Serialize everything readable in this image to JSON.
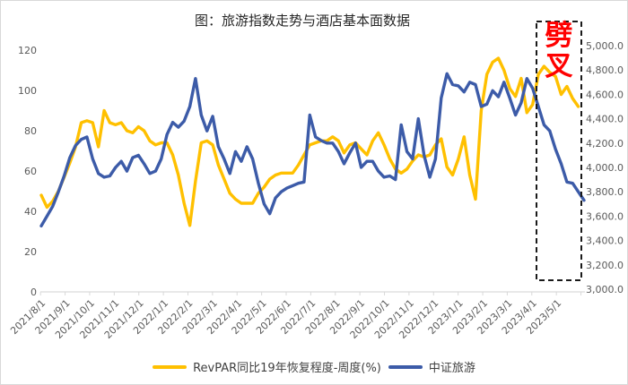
{
  "frame": {
    "title": "图：旅游指数走势与酒店基本面数据"
  },
  "annotation": {
    "text": "劈叉",
    "color": "#FF0000"
  },
  "legend": [
    {
      "label": "RevPAR同比19年恢复程度-周度(%)",
      "color": "#FFC000"
    },
    {
      "label": "中证旅游",
      "color": "#3C5BA8"
    }
  ],
  "chart_data": {
    "type": "line",
    "title": "图：旅游指数走势与酒店基本面数据",
    "frequency": "weekly",
    "x_tick_labels": [
      "2021/8/1",
      "2021/9/1",
      "2021/10/1",
      "2021/11/1",
      "2021/12/1",
      "2022/1/1",
      "2022/2/1",
      "2022/3/1",
      "2022/4/1",
      "2022/5/1",
      "2022/6/1",
      "2022/7/1",
      "2022/8/1",
      "2022/9/1",
      "2022/10/1",
      "2022/11/1",
      "2022/12/1",
      "2023/1/1",
      "2023/2/1",
      "2023/3/1",
      "2023/4/1",
      "2023/5/1"
    ],
    "left_axis": {
      "min": 0,
      "max": 120,
      "tick_labels": [
        "120",
        "100",
        "80",
        "60",
        "40",
        "20",
        "0"
      ]
    },
    "right_axis": {
      "min": 3000,
      "max": 5000,
      "tick_labels": [
        "5,000.0",
        "4,800.0",
        "4,600.0",
        "4,400.0",
        "4,200.0",
        "4,000.0",
        "3,800.0",
        "3,600.0",
        "3,400.0",
        "3,200.0",
        "3,000.0"
      ]
    },
    "grid": false,
    "legend_position": "bottom",
    "highlight_box": {
      "label": "劈叉",
      "style": "black-dashed",
      "covers": "2023/4 - 2023/5"
    },
    "series": [
      {
        "name": "RevPAR同比19年恢复程度-周度(%)",
        "axis": "left",
        "color": "#FFC000",
        "values": [
          48,
          42,
          45,
          50,
          57,
          64,
          72,
          84,
          85,
          84,
          72,
          90,
          84,
          83,
          84,
          80,
          79,
          82,
          80,
          75,
          73,
          74,
          74,
          68,
          58,
          44,
          33,
          55,
          74,
          75,
          73,
          63,
          56,
          49,
          46,
          44,
          44,
          44,
          49,
          52,
          56,
          58,
          59,
          59,
          59,
          63,
          68,
          73,
          74,
          75,
          75,
          77,
          75,
          69,
          73,
          74,
          71,
          68,
          75,
          79,
          73,
          66,
          61,
          59,
          61,
          65,
          68,
          67,
          68,
          73,
          76,
          62,
          58,
          66,
          77,
          58,
          46,
          90,
          108,
          114,
          116,
          110,
          101,
          97,
          106,
          89,
          93,
          108,
          112,
          109,
          107,
          98,
          102,
          96,
          92
        ]
      },
      {
        "name": "中证旅游",
        "axis": "right",
        "color": "#3C5BA8",
        "values": [
          3520,
          3600,
          3680,
          3800,
          3930,
          4080,
          4180,
          4230,
          4250,
          4070,
          3950,
          3920,
          3930,
          4000,
          4050,
          3970,
          4080,
          4100,
          4030,
          3950,
          3970,
          4070,
          4270,
          4370,
          4330,
          4380,
          4500,
          4730,
          4430,
          4300,
          4420,
          4170,
          4070,
          3950,
          4130,
          4050,
          4170,
          4070,
          3870,
          3700,
          3620,
          3750,
          3800,
          3830,
          3850,
          3870,
          3880,
          4430,
          4250,
          4220,
          4200,
          4200,
          4130,
          4030,
          4120,
          4200,
          4000,
          4050,
          4050,
          3970,
          3920,
          3930,
          3900,
          4350,
          4130,
          4070,
          4400,
          4100,
          3920,
          4070,
          4570,
          4770,
          4680,
          4670,
          4620,
          4700,
          4680,
          4500,
          4520,
          4630,
          4580,
          4700,
          4570,
          4430,
          4530,
          4730,
          4650,
          4500,
          4350,
          4300,
          4150,
          4030,
          3880,
          3870,
          3800,
          3730
        ]
      }
    ]
  }
}
